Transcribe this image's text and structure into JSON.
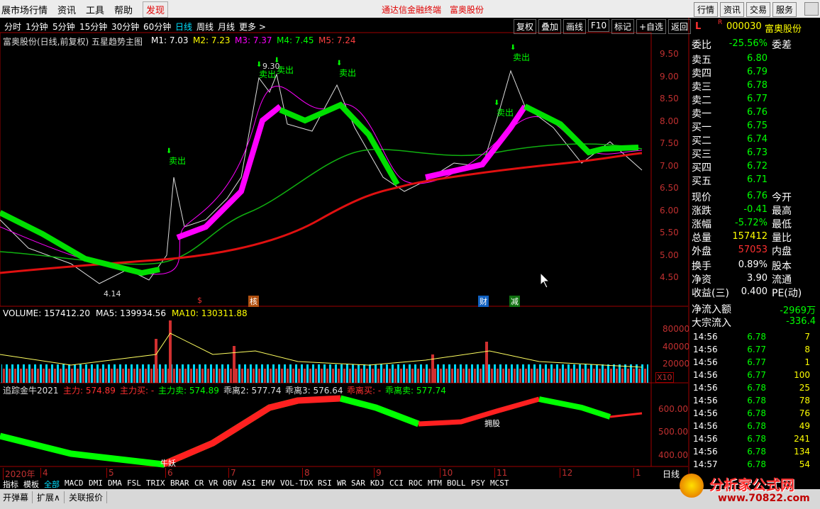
{
  "menu": {
    "items": [
      "展市场行情",
      "资讯",
      "工具",
      "帮助"
    ],
    "discover": "发现",
    "center": [
      "通达信金融终端",
      "富奥股份"
    ],
    "right": [
      "行情",
      "资讯",
      "交易",
      "服务"
    ]
  },
  "toolbar": {
    "periods": [
      "分时",
      "1分钟",
      "5分钟",
      "15分钟",
      "30分钟",
      "60分钟",
      "日线",
      "周线",
      "月线",
      "更多 >"
    ],
    "tools": [
      "复权",
      "叠加",
      "画线",
      "F10",
      "标记",
      "+自选",
      "返回"
    ]
  },
  "main_chart": {
    "title": "富奥股份(日线,前复权) 五星趋势主图",
    "indicators": [
      {
        "text": "M1: 7.03",
        "color": "#ffffff"
      },
      {
        "text": "M2: 7.23",
        "color": "#ffff00"
      },
      {
        "text": "M3: 7.37",
        "color": "#ff00ff"
      },
      {
        "text": "M4: 7.45",
        "color": "#00ff00"
      },
      {
        "text": "M5: 7.24",
        "color": "#ff4040"
      }
    ],
    "price_ticks": [
      "9.50",
      "9.00",
      "8.50",
      "8.00",
      "7.50",
      "7.00",
      "6.50",
      "6.00",
      "5.50",
      "5.00",
      "4.50"
    ],
    "sell_labels": [
      "卖出",
      "卖出",
      "卖出",
      "卖出",
      "卖出",
      "卖出"
    ],
    "high": "9.30",
    "low": "4.14",
    "markers": [
      "$",
      "核",
      "财",
      "减"
    ]
  },
  "volume": {
    "indicators": [
      {
        "text": "VOLUME: 157412.20",
        "color": "#ffffff"
      },
      {
        "text": "MA5: 139934.56",
        "color": "#ffffff"
      },
      {
        "text": "MA10: 130311.88",
        "color": "#ffff00"
      }
    ],
    "ticks": [
      "80000",
      "40000",
      "20000"
    ],
    "scale": "X10"
  },
  "indicator_panel": {
    "items": [
      {
        "text": "追踪金牛2021",
        "color": "#dddddd"
      },
      {
        "text": "主力: 574.89",
        "color": "#ff3030"
      },
      {
        "text": "主力买: -",
        "color": "#ff3030"
      },
      {
        "text": "主力卖: 574.89",
        "color": "#00ff00"
      },
      {
        "text": "乖离2: 577.74",
        "color": "#dddddd"
      },
      {
        "text": "乖离3: 576.64",
        "color": "#dddddd"
      },
      {
        "text": "乖离买: -",
        "color": "#ff3030"
      },
      {
        "text": "乖离卖: 577.74",
        "color": "#00ff00"
      }
    ],
    "ticks": [
      "600.00",
      "500.00",
      "400.00"
    ],
    "labels": [
      "牛妖",
      "拥股"
    ]
  },
  "date_axis": {
    "labels": [
      "2020年",
      "4",
      "5",
      "6",
      "7",
      "8",
      "9",
      "10",
      "11",
      "12",
      "1"
    ],
    "period": "日线"
  },
  "tabs": [
    "指标",
    "模板",
    "全部",
    "MACD",
    "DMI",
    "DMA",
    "FSL",
    "TRIX",
    "BRAR",
    "CR",
    "VR",
    "OBV",
    "ASI",
    "EMV",
    "VOL-TDX",
    "RSI",
    "WR",
    "SAR",
    "KDJ",
    "CCI",
    "ROC",
    "MTM",
    "BOLL",
    "PSY",
    "MCST"
  ],
  "bottom_bar": [
    "开弹幕",
    "扩展∧",
    "关联报价"
  ],
  "quote": {
    "flag": "L",
    "mark": "R",
    "code": "000030",
    "name": "富奥股份",
    "ratio": {
      "label": "委比",
      "value": "-25.56%",
      "extra": "委差"
    },
    "book": [
      [
        "卖五",
        "6.80"
      ],
      [
        "卖四",
        "6.79"
      ],
      [
        "卖三",
        "6.78"
      ],
      [
        "卖二",
        "6.77"
      ],
      [
        "卖一",
        "6.76"
      ],
      [
        "买一",
        "6.75"
      ],
      [
        "买二",
        "6.74"
      ],
      [
        "买三",
        "6.73"
      ],
      [
        "买四",
        "6.72"
      ],
      [
        "买五",
        "6.71"
      ]
    ],
    "stats": [
      [
        "现价",
        "6.76",
        "今开"
      ],
      [
        "涨跌",
        "-0.41",
        "最高"
      ],
      [
        "涨幅",
        "-5.72%",
        "最低"
      ],
      [
        "总量",
        "157412",
        "量比"
      ],
      [
        "外盘",
        "57053",
        "内盘"
      ],
      [
        "换手",
        "0.89%",
        "股本"
      ],
      [
        "净资",
        "3.90",
        "流通"
      ],
      [
        "收益(三)",
        "0.400",
        "PE(动)"
      ]
    ],
    "flows": [
      [
        "净流入额",
        "-2969万"
      ],
      [
        "大宗流入",
        "-336.4"
      ]
    ],
    "trades": [
      [
        "14:56",
        "6.78",
        "7"
      ],
      [
        "14:56",
        "6.77",
        "8"
      ],
      [
        "14:56",
        "6.77",
        "1"
      ],
      [
        "14:56",
        "6.77",
        "100"
      ],
      [
        "14:56",
        "6.78",
        "25"
      ],
      [
        "14:56",
        "6.78",
        "78"
      ],
      [
        "14:56",
        "6.78",
        "76"
      ],
      [
        "14:56",
        "6.78",
        "49"
      ],
      [
        "14:56",
        "6.78",
        "241"
      ],
      [
        "14:56",
        "6.78",
        "134"
      ],
      [
        "14:57",
        "6.78",
        "54"
      ]
    ]
  },
  "watermark": {
    "name": "分析家公式网",
    "url": "www.70822.com"
  }
}
